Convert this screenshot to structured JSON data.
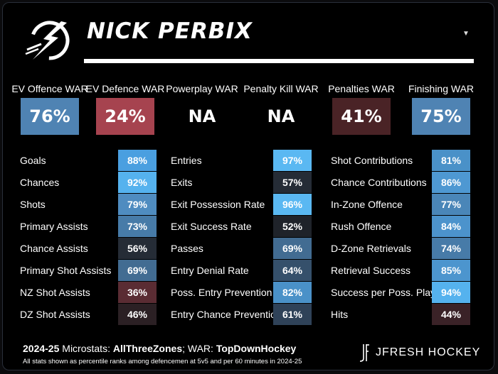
{
  "player": {
    "name": "NICK PERBIX"
  },
  "war": [
    {
      "label": "EV Offence WAR",
      "value": "76%",
      "color": "#4f83b3"
    },
    {
      "label": "EV Defence WAR",
      "value": "24%",
      "color": "#a6434f"
    },
    {
      "label": "Powerplay WAR",
      "value": "NA",
      "color": "#000000"
    },
    {
      "label": "Penalty Kill WAR",
      "value": "NA",
      "color": "#000000"
    },
    {
      "label": "Penalties WAR",
      "value": "41%",
      "color": "#4a2326"
    },
    {
      "label": "Finishing WAR",
      "value": "75%",
      "color": "#4f83b3"
    }
  ],
  "columns": [
    [
      {
        "label": "Goals",
        "value": "88%",
        "color": "#4a9fe0"
      },
      {
        "label": "Chances",
        "value": "92%",
        "color": "#55b2ee"
      },
      {
        "label": "Shots",
        "value": "79%",
        "color": "#4f8cc0"
      },
      {
        "label": "Primary Assists",
        "value": "73%",
        "color": "#477ba8"
      },
      {
        "label": "Chance Assists",
        "value": "56%",
        "color": "#252c36"
      },
      {
        "label": "Primary Shot Assists",
        "value": "69%",
        "color": "#426c92"
      },
      {
        "label": "NZ Shot Assists",
        "value": "36%",
        "color": "#5a2c33"
      },
      {
        "label": "DZ Shot Assists",
        "value": "46%",
        "color": "#2b2024"
      }
    ],
    [
      {
        "label": "Entries",
        "value": "97%",
        "color": "#5ab8f2"
      },
      {
        "label": "Exits",
        "value": "57%",
        "color": "#252c36"
      },
      {
        "label": "Exit Possession Rate",
        "value": "96%",
        "color": "#5ab8f2"
      },
      {
        "label": "Exit Success Rate",
        "value": "52%",
        "color": "#1f232a"
      },
      {
        "label": "Passes",
        "value": "69%",
        "color": "#426c92"
      },
      {
        "label": "Entry Denial Rate",
        "value": "64%",
        "color": "#35506b"
      },
      {
        "label": "Poss. Entry Prevention",
        "value": "82%",
        "color": "#4a91c8"
      },
      {
        "label": "Entry Chance Prevention",
        "value": "61%",
        "color": "#2f4258"
      }
    ],
    [
      {
        "label": "Shot Contributions",
        "value": "81%",
        "color": "#4a91c8"
      },
      {
        "label": "Chance Contributions",
        "value": "86%",
        "color": "#4e98d2"
      },
      {
        "label": "In-Zone Offence",
        "value": "77%",
        "color": "#4a86b8"
      },
      {
        "label": "Rush Offence",
        "value": "84%",
        "color": "#4c93cc"
      },
      {
        "label": "D-Zone Retrievals",
        "value": "74%",
        "color": "#477ba8"
      },
      {
        "label": "Retrieval Success",
        "value": "85%",
        "color": "#4c95ce"
      },
      {
        "label": "Success per Poss. Play",
        "value": "94%",
        "color": "#55b2ee"
      },
      {
        "label": "Hits",
        "value": "44%",
        "color": "#3a2227"
      }
    ]
  ],
  "footer": {
    "season": "2024-25",
    "micro_label": "Microstats:",
    "micro_source": "AllThreeZones",
    "war_label": "; WAR:",
    "war_source": "TopDownHockey",
    "note": "All stats shown as percentile ranks among defencemen at 5v5 and per 60 minutes in 2024-25",
    "brand": "JFRESH HOCKEY"
  },
  "icons": {
    "logo": "lightning-bolt-logo",
    "dropdown": "caret-down-icon",
    "brand": "jf-monogram-icon"
  }
}
